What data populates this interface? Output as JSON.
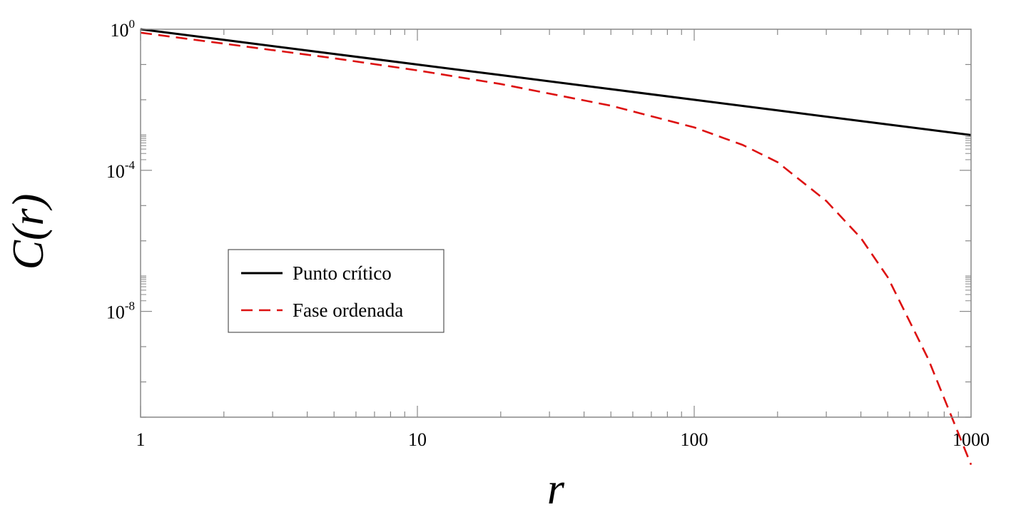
{
  "chart_data": {
    "type": "line",
    "xlabel": "r",
    "ylabel": "C(r)",
    "xscale": "log",
    "yscale": "log",
    "xlim": [
      1,
      1000
    ],
    "ylim": [
      1e-11,
      1
    ],
    "x_ticks": [
      {
        "value": 1,
        "label": "1"
      },
      {
        "value": 10,
        "label": "10"
      },
      {
        "value": 100,
        "label": "100"
      },
      {
        "value": 1000,
        "label": "1000"
      }
    ],
    "y_ticks": [
      {
        "value": 1,
        "base": "10",
        "exp": "0"
      },
      {
        "value": 0.0001,
        "base": "10",
        "exp": "-4"
      },
      {
        "value": 1e-08,
        "base": "10",
        "exp": "-8"
      }
    ],
    "legend": {
      "position": "center-left"
    },
    "series": [
      {
        "name": "Punto crítico",
        "color": "#000000",
        "style": "solid",
        "x": [
          1,
          2,
          5,
          10,
          20,
          50,
          100,
          200,
          500,
          1000
        ],
        "y": [
          1.0,
          0.5,
          0.2,
          0.1,
          0.05,
          0.02,
          0.01,
          0.005,
          0.002,
          0.001
        ]
      },
      {
        "name": "Fase ordenada",
        "color": "#dd1111",
        "style": "dashed",
        "x": [
          1,
          2,
          5,
          10,
          20,
          50,
          100,
          150,
          200,
          300,
          400,
          500,
          700,
          1000
        ],
        "y": [
          0.8,
          0.39,
          0.15,
          0.068,
          0.028,
          0.0068,
          0.00165,
          0.00052,
          0.00017,
          1.35e-05,
          1.2e-06,
          9.3e-08,
          4.5e-10,
          4.5e-13
        ]
      }
    ]
  }
}
